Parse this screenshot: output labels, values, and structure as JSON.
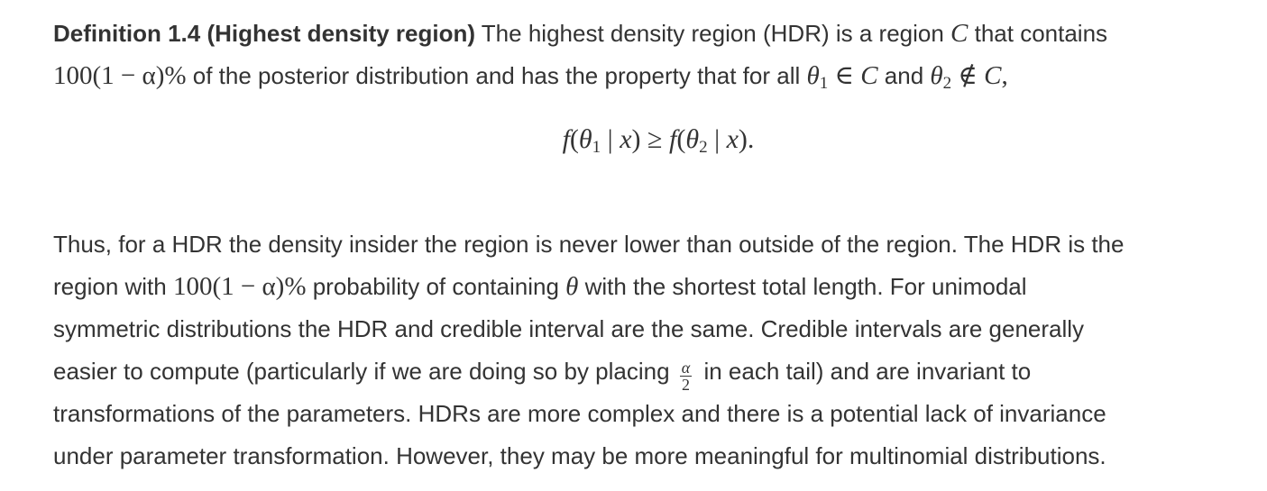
{
  "definition": {
    "label": "Definition 1.4 (Highest density region)",
    "line1_a": " The highest density region (HDR) is a region ",
    "var_C": "C",
    "line1_b": " that contains",
    "line2_math": "100(1 − α)%",
    "line2_a": " of the posterior distribution and has the property that for all ",
    "theta": "θ",
    "sub1": "1",
    "sub2": "2",
    "in_symbol": " ∈ ",
    "and_text": " and ",
    "notin_symbol": " ∉ ",
    "comma": ",",
    "display_f": "f",
    "display_open": "(",
    "display_bar": " | ",
    "display_x": "x",
    "display_close": ")",
    "display_geq": " ≥ ",
    "display_end": ")."
  },
  "paragraph": {
    "line1": "Thus, for a HDR the density insider the region is never lower than outside of the region. The HDR is the",
    "line2_a": "region with ",
    "line2_math": "100(1 − α)%",
    "line2_b": " probability of containing ",
    "theta": "θ",
    "line2_c": " with the shortest total length. For unimodal",
    "line3": "symmetric distributions the HDR and credible interval are the same. Credible intervals are generally",
    "line4_a": "easier to compute (particularly if we are doing so by placing ",
    "frac_num": "α",
    "frac_den": "2",
    "line4_b": " in each tail) and are invariant to",
    "line5": "transformations of the parameters. HDRs are more complex and there is a potential lack of invariance",
    "line6": "under parameter transformation. However, they may be more meaningful for multinomial distributions."
  }
}
